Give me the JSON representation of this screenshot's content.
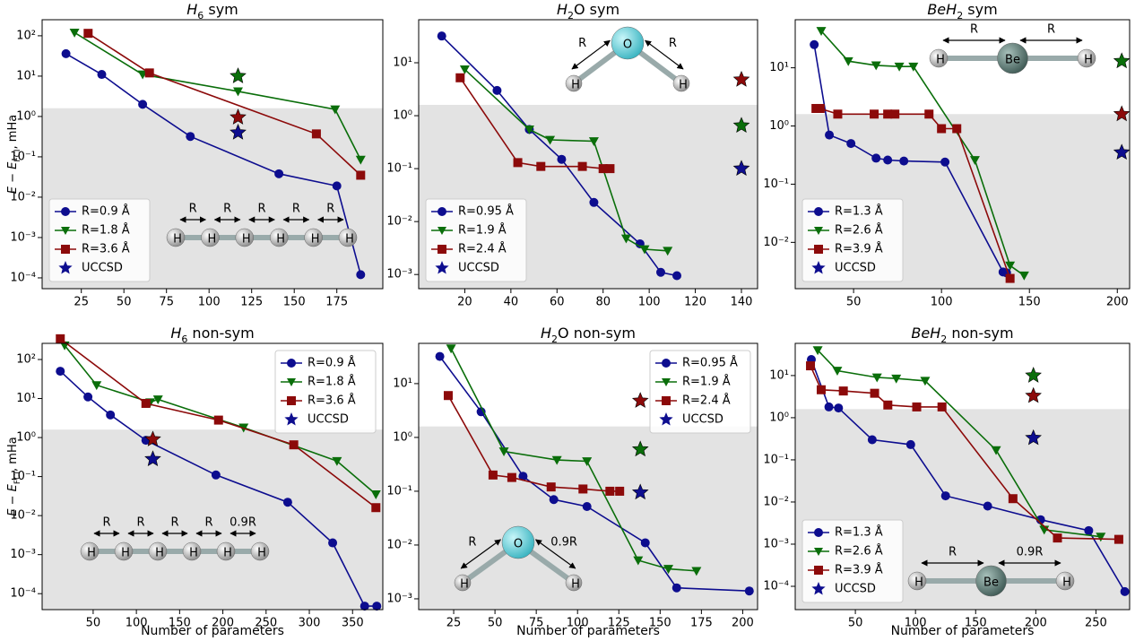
{
  "chart_data": [
    {
      "type": "line",
      "title": [
        "H",
        "6",
        " sym"
      ],
      "y_label": [
        "E − E",
        "FCI",
        ", mHa"
      ],
      "log_y": true,
      "xlim": [
        2,
        202
      ],
      "ylim": [
        5.4e-05,
        250
      ],
      "xticks": [
        25,
        50,
        75,
        100,
        125,
        150,
        175
      ],
      "yticks": [
        {
          "value": 0.0001,
          "label": "10⁻⁴"
        },
        {
          "value": 0.001,
          "label": "10⁻³"
        },
        {
          "value": 0.01,
          "label": "10⁻²"
        },
        {
          "value": 0.1,
          "label": "10⁻¹"
        },
        {
          "value": 1,
          "label": "10⁰"
        },
        {
          "value": 10,
          "label": "10¹"
        },
        {
          "value": 100,
          "label": "10²"
        }
      ],
      "shade_below": 1.6,
      "shade_color": "#e3e3e3",
      "legend": "lower left",
      "series": [
        {
          "name": "R=0.9 Å",
          "color": "#0d0d8f",
          "marker": "circle",
          "x": [
            16,
            37,
            61,
            89,
            141,
            175,
            189
          ],
          "values": [
            36,
            11,
            2,
            0.32,
            0.038,
            0.019,
            0.00012
          ]
        },
        {
          "name": "R=1.8 Å",
          "color": "#0a6e0a",
          "marker": "triangle-down",
          "x": [
            21,
            61,
            117,
            174,
            189
          ],
          "values": [
            120,
            11,
            4.2,
            1.5,
            0.085
          ]
        },
        {
          "name": "R=3.6 Å",
          "color": "#8c0a0a",
          "marker": "square",
          "x": [
            29,
            65,
            163,
            189
          ],
          "values": [
            115,
            12,
            0.37,
            0.035
          ]
        }
      ],
      "uccsd": {
        "name": "UCCSD",
        "color": "#0d0d8f",
        "x": [
          117,
          117,
          117
        ],
        "values": [
          10,
          0.95,
          0.4
        ],
        "colors": [
          "#0a6e0a",
          "#8c0a0a",
          "#0d0d8f"
        ]
      },
      "molecule": {
        "shape": "chain",
        "atoms": [
          "H",
          "H",
          "H",
          "H",
          "H",
          "H"
        ],
        "bonds": [
          "R",
          "R",
          "R",
          "R",
          "R"
        ]
      }
    },
    {
      "type": "line",
      "title": [
        "H",
        "2",
        "O sym"
      ],
      "log_y": true,
      "xlim": [
        0,
        147
      ],
      "ylim": [
        0.00054,
        65
      ],
      "xticks": [
        20,
        40,
        60,
        80,
        100,
        120,
        140
      ],
      "yticks": [
        {
          "value": 0.001,
          "label": "10⁻³"
        },
        {
          "value": 0.01,
          "label": "10⁻²"
        },
        {
          "value": 0.1,
          "label": "10⁻¹"
        },
        {
          "value": 1,
          "label": "10⁰"
        },
        {
          "value": 10,
          "label": "10¹"
        }
      ],
      "shade_below": 1.6,
      "shade_color": "#e3e3e3",
      "legend": "lower left",
      "series": [
        {
          "name": "R=0.95 Å",
          "color": "#0d0d8f",
          "marker": "circle",
          "x": [
            10,
            34,
            48,
            62,
            76,
            96,
            105,
            112
          ],
          "values": [
            32,
            3,
            0.55,
            0.15,
            0.023,
            0.0038,
            0.0011,
            0.00095
          ]
        },
        {
          "name": "R=1.9 Å",
          "color": "#0a6e0a",
          "marker": "triangle-down",
          "x": [
            20,
            48,
            57,
            76,
            90,
            98,
            108
          ],
          "values": [
            7.5,
            0.55,
            0.35,
            0.33,
            0.0048,
            0.003,
            0.0028
          ]
        },
        {
          "name": "R=2.4 Å",
          "color": "#8c0a0a",
          "marker": "square",
          "x": [
            18,
            43,
            53,
            71,
            80,
            83
          ],
          "values": [
            5.2,
            0.13,
            0.11,
            0.11,
            0.1,
            0.1
          ]
        }
      ],
      "uccsd": {
        "name": "UCCSD",
        "color": "#0d0d8f",
        "x": [
          140,
          140,
          140
        ],
        "values": [
          4.8,
          0.65,
          0.1
        ],
        "colors": [
          "#8c0a0a",
          "#0a6e0a",
          "#0d0d8f"
        ]
      },
      "molecule": {
        "shape": "bent",
        "atoms": [
          "H",
          "O",
          "H"
        ],
        "bonds": [
          "R",
          "R"
        ]
      }
    },
    {
      "type": "line",
      "title": [
        "BeH",
        "2",
        " sym"
      ],
      "log_y": true,
      "xlim": [
        16.8,
        207
      ],
      "ylim": [
        0.0016,
        67
      ],
      "xticks": [
        50,
        100,
        150,
        200
      ],
      "yticks": [
        {
          "value": 0.01,
          "label": "10⁻²"
        },
        {
          "value": 0.1,
          "label": "10⁻¹"
        },
        {
          "value": 1,
          "label": "10⁰"
        },
        {
          "value": 10,
          "label": "10¹"
        }
      ],
      "shade_below": 1.6,
      "shade_color": "#e3e3e3",
      "legend": "lower left",
      "series": [
        {
          "name": "R=1.3 Å",
          "color": "#0d0d8f",
          "marker": "circle",
          "x": [
            27.6,
            36.2,
            48.5,
            62.8,
            69.4,
            78.6,
            102,
            135,
            137
          ],
          "values": [
            25,
            0.7,
            0.5,
            0.28,
            0.26,
            0.25,
            0.24,
            0.0031,
            0.003
          ]
        },
        {
          "name": "R=2.6 Å",
          "color": "#0a6e0a",
          "marker": "triangle-down",
          "x": [
            31.6,
            47,
            62.8,
            76,
            84,
            119,
            139,
            147
          ],
          "values": [
            43,
            13,
            11,
            10.5,
            10.5,
            0.26,
            0.004,
            0.0027
          ]
        },
        {
          "name": "R=3.9 Å",
          "color": "#8c0a0a",
          "marker": "square",
          "x": [
            28.6,
            31,
            41,
            61.7,
            69.4,
            73.5,
            92.9,
            100,
            108.7,
            139
          ],
          "values": [
            2,
            2,
            1.6,
            1.6,
            1.6,
            1.6,
            1.6,
            0.9,
            0.9,
            0.0024
          ]
        }
      ],
      "uccsd": {
        "name": "UCCSD",
        "color": "#0d0d8f",
        "x": [
          202.5,
          202.5,
          202.5
        ],
        "values": [
          13,
          1.6,
          0.35
        ],
        "colors": [
          "#0a6e0a",
          "#8c0a0a",
          "#0d0d8f"
        ]
      },
      "molecule": {
        "shape": "linear",
        "atoms": [
          "H",
          "Be",
          "H"
        ],
        "bonds": [
          "R",
          "R"
        ]
      }
    },
    {
      "type": "line",
      "title": [
        "H",
        "6",
        " non-sym"
      ],
      "y_label": [
        "E − E",
        "FCI",
        ", mHa"
      ],
      "x_label": "Number of parameters",
      "log_y": true,
      "xlim": [
        -9,
        385
      ],
      "ylim": [
        3.9e-05,
        259
      ],
      "xticks": [
        50,
        100,
        150,
        200,
        250,
        300,
        350
      ],
      "yticks": [
        {
          "value": 0.0001,
          "label": "10⁻⁴"
        },
        {
          "value": 0.001,
          "label": "10⁻³"
        },
        {
          "value": 0.01,
          "label": "10⁻²"
        },
        {
          "value": 0.1,
          "label": "10⁻¹"
        },
        {
          "value": 1,
          "label": "10⁰"
        },
        {
          "value": 10,
          "label": "10¹"
        },
        {
          "value": 100,
          "label": "10²"
        }
      ],
      "shade_below": 1.6,
      "shade_color": "#e3e3e3",
      "legend": "upper right",
      "series": [
        {
          "name": "R=0.9 Å",
          "color": "#0d0d8f",
          "marker": "circle",
          "x": [
            12,
            44,
            70,
            111,
            192,
            275,
            327,
            364,
            378
          ],
          "values": [
            50,
            11,
            3.8,
            0.85,
            0.11,
            0.022,
            0.002,
            4.8e-05,
            4.8e-05
          ]
        },
        {
          "name": "R=1.8 Å",
          "color": "#0a6e0a",
          "marker": "triangle-down",
          "x": [
            17,
            54,
            116,
            125,
            224,
            332,
            377
          ],
          "values": [
            230,
            22,
            8,
            9.5,
            1.8,
            0.25,
            0.035
          ]
        },
        {
          "name": "R=3.6 Å",
          "color": "#8c0a0a",
          "marker": "square",
          "x": [
            12,
            111,
            195,
            282,
            377
          ],
          "values": [
            340,
            7.5,
            2.8,
            0.65,
            0.016
          ]
        }
      ],
      "uccsd": {
        "name": "UCCSD",
        "color": "#0d0d8f",
        "x": [
          119,
          119
        ],
        "values": [
          0.9,
          0.28
        ],
        "colors": [
          "#8c0a0a",
          "#0d0d8f"
        ]
      },
      "molecule": {
        "shape": "chain",
        "atoms": [
          "H",
          "H",
          "H",
          "H",
          "H",
          "H"
        ],
        "bonds": [
          "R",
          "R",
          "R",
          "R",
          "0.9R"
        ]
      }
    },
    {
      "type": "line",
      "title": [
        "H",
        "2",
        "O non-sym"
      ],
      "x_label": "Number of parameters",
      "log_y": true,
      "xlim": [
        3.8,
        209
      ],
      "ylim": [
        0.00063,
        56
      ],
      "xticks": [
        25,
        50,
        75,
        100,
        125,
        150,
        175,
        200
      ],
      "yticks": [
        {
          "value": 0.001,
          "label": "10⁻³"
        },
        {
          "value": 0.01,
          "label": "10⁻²"
        },
        {
          "value": 0.1,
          "label": "10⁻¹"
        },
        {
          "value": 1,
          "label": "10⁰"
        },
        {
          "value": 10,
          "label": "10¹"
        }
      ],
      "shade_below": 1.6,
      "shade_color": "#e3e3e3",
      "legend": "upper right",
      "series": [
        {
          "name": "R=0.95 Å",
          "color": "#0d0d8f",
          "marker": "circle",
          "x": [
            16.6,
            41.6,
            67,
            85.6,
            105.7,
            141,
            160,
            204
          ],
          "values": [
            32,
            3,
            0.19,
            0.07,
            0.052,
            0.011,
            0.0016,
            0.0014
          ]
        },
        {
          "name": "R=1.9 Å",
          "color": "#0a6e0a",
          "marker": "triangle-down",
          "x": [
            23.4,
            55.4,
            87.5,
            105.7,
            136.7,
            155,
            172
          ],
          "values": [
            45,
            0.55,
            0.38,
            0.36,
            0.0052,
            0.0036,
            0.0033
          ]
        },
        {
          "name": "R=2.4 Å",
          "color": "#8c0a0a",
          "marker": "square",
          "x": [
            21.7,
            48.8,
            60.2,
            84,
            103.3,
            119.6,
            125.5
          ],
          "values": [
            6,
            0.2,
            0.18,
            0.12,
            0.11,
            0.1,
            0.1
          ]
        }
      ],
      "uccsd": {
        "name": "UCCSD",
        "color": "#0d0d8f",
        "x": [
          138,
          138,
          138
        ],
        "values": [
          4.8,
          0.6,
          0.095
        ],
        "colors": [
          "#8c0a0a",
          "#0a6e0a",
          "#0d0d8f"
        ]
      },
      "molecule": {
        "shape": "bent",
        "atoms": [
          "H",
          "O",
          "H"
        ],
        "bonds": [
          "R",
          "0.9R"
        ]
      }
    },
    {
      "type": "line",
      "title": [
        "BeH",
        "2",
        " non-sym"
      ],
      "x_label": "Number of parameters",
      "log_y": true,
      "xlim": [
        0,
        278
      ],
      "ylim": [
        2.8e-05,
        58
      ],
      "xticks": [
        50,
        100,
        150,
        200,
        250
      ],
      "yticks": [
        {
          "value": 0.0001,
          "label": "10⁻⁴"
        },
        {
          "value": 0.001,
          "label": "10⁻³"
        },
        {
          "value": 0.01,
          "label": "10⁻²"
        },
        {
          "value": 0.1,
          "label": "10⁻¹"
        },
        {
          "value": 1,
          "label": "10⁰"
        },
        {
          "value": 10,
          "label": "10¹"
        }
      ],
      "shade_below": 1.6,
      "shade_color": "#e3e3e3",
      "legend": "lower left",
      "series": [
        {
          "name": "R=1.3 Å",
          "color": "#0d0d8f",
          "marker": "circle",
          "x": [
            13.4,
            28,
            36,
            64,
            96,
            125,
            160,
            204,
            244,
            274
          ],
          "values": [
            24,
            1.8,
            1.7,
            0.3,
            0.23,
            0.014,
            0.008,
            0.0038,
            0.0021,
            7.5e-05
          ]
        },
        {
          "name": "R=2.6 Å",
          "color": "#0a6e0a",
          "marker": "triangle-down",
          "x": [
            18.7,
            35,
            68,
            84,
            108,
            167,
            207,
            254
          ],
          "values": [
            40,
            13,
            9,
            8.5,
            7.5,
            0.17,
            0.0022,
            0.0015
          ]
        },
        {
          "name": "R=3.9 Å",
          "color": "#8c0a0a",
          "marker": "square",
          "x": [
            12.7,
            21.6,
            40,
            66,
            77,
            101,
            122,
            181,
            218,
            269
          ],
          "values": [
            17,
            4.6,
            4.3,
            3.8,
            2,
            1.8,
            1.8,
            0.012,
            0.0014,
            0.0013
          ]
        }
      ],
      "uccsd": {
        "name": "UCCSD",
        "color": "#0d0d8f",
        "x": [
          198,
          198,
          198
        ],
        "values": [
          10,
          3.3,
          0.33
        ],
        "colors": [
          "#0a6e0a",
          "#8c0a0a",
          "#0d0d8f"
        ]
      },
      "molecule": {
        "shape": "linear",
        "atoms": [
          "H",
          "Be",
          "H"
        ],
        "bonds": [
          "R",
          "0.9R"
        ]
      }
    }
  ]
}
